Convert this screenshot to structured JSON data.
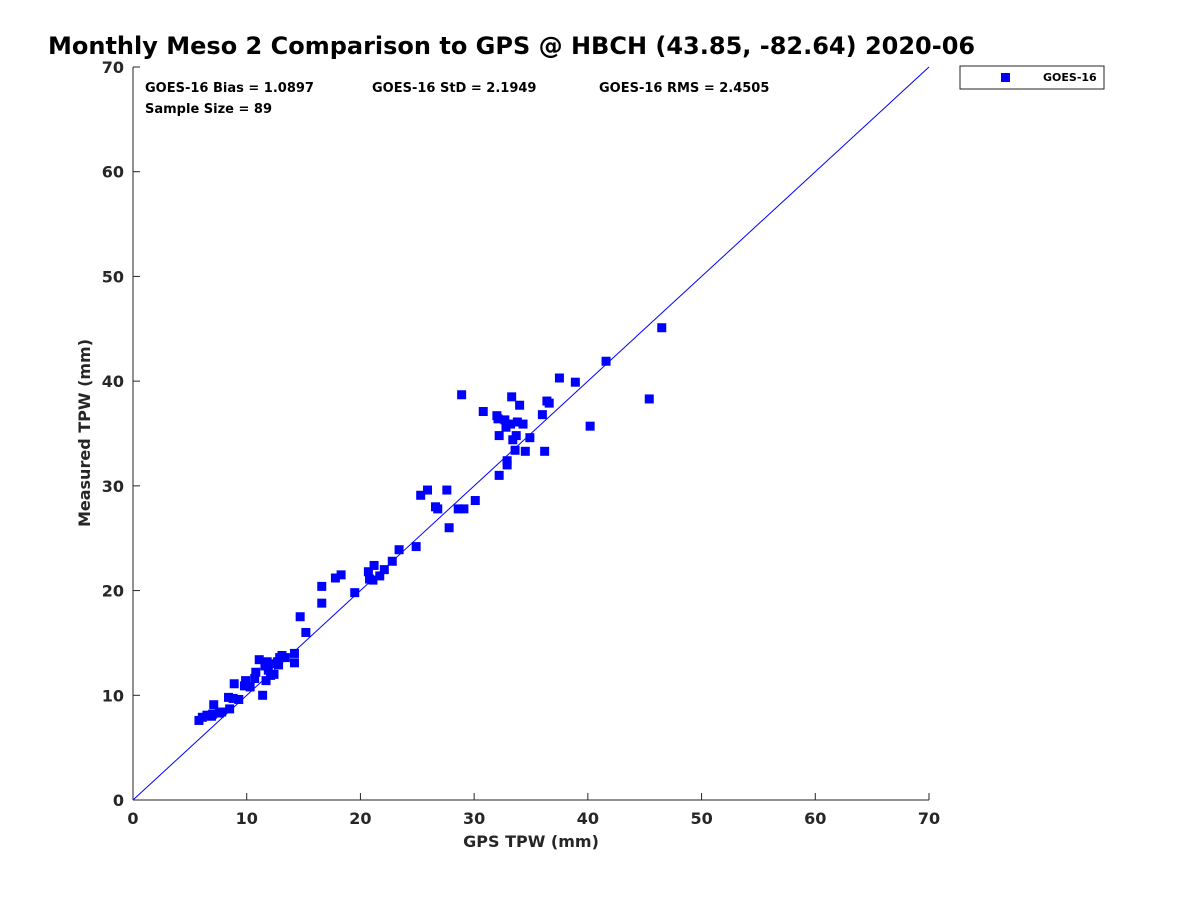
{
  "chart_data": {
    "type": "scatter",
    "title": "Monthly Meso 2 Comparison to GPS @ HBCH (43.85, -82.64) 2020-06",
    "xlabel": "GPS TPW (mm)",
    "ylabel": "Measured TPW (mm)",
    "xlim": [
      0,
      70
    ],
    "ylim": [
      0,
      70
    ],
    "xticks": [
      0,
      10,
      20,
      30,
      40,
      50,
      60,
      70
    ],
    "yticks": [
      0,
      10,
      20,
      30,
      40,
      50,
      60,
      70
    ],
    "grid": false,
    "legend_position": "outside-top-right",
    "reference_line": {
      "x": [
        0,
        70
      ],
      "y": [
        0,
        70
      ],
      "color": "#0000ff"
    },
    "annotations": {
      "bias": "GOES-16 Bias = 1.0897",
      "std": "GOES-16 StD = 2.1949",
      "rms": "GOES-16 RMS = 2.4505",
      "sample_size": "Sample Size = 89"
    },
    "series": [
      {
        "name": "GOES-16",
        "color": "#0000ff",
        "marker": "square",
        "points": [
          [
            5.8,
            7.6
          ],
          [
            6.1,
            7.9
          ],
          [
            6.5,
            8.1
          ],
          [
            6.9,
            8.0
          ],
          [
            7.0,
            8.2
          ],
          [
            7.1,
            9.1
          ],
          [
            7.6,
            8.3
          ],
          [
            8.4,
            9.8
          ],
          [
            8.5,
            8.7
          ],
          [
            8.8,
            9.7
          ],
          [
            8.9,
            11.1
          ],
          [
            9.8,
            10.9
          ],
          [
            9.9,
            11.4
          ],
          [
            10.7,
            11.6
          ],
          [
            10.8,
            12.2
          ],
          [
            11.1,
            13.4
          ],
          [
            11.4,
            10.0
          ],
          [
            11.6,
            12.8
          ],
          [
            11.7,
            11.4
          ],
          [
            11.8,
            13.2
          ],
          [
            11.9,
            12.4
          ],
          [
            12.1,
            11.9
          ],
          [
            12.2,
            13.0
          ],
          [
            12.4,
            12.0
          ],
          [
            12.7,
            13.2
          ],
          [
            12.8,
            12.9
          ],
          [
            12.9,
            13.6
          ],
          [
            13.1,
            13.8
          ],
          [
            13.4,
            13.6
          ],
          [
            14.2,
            14.0
          ],
          [
            14.2,
            13.1
          ],
          [
            14.7,
            17.5
          ],
          [
            16.6,
            18.8
          ],
          [
            16.6,
            20.4
          ],
          [
            17.8,
            21.2
          ],
          [
            18.3,
            21.5
          ],
          [
            20.7,
            21.8
          ],
          [
            20.8,
            21.1
          ],
          [
            21.1,
            21.0
          ],
          [
            21.2,
            22.4
          ],
          [
            21.7,
            21.4
          ],
          [
            22.1,
            22.0
          ],
          [
            22.8,
            22.8
          ],
          [
            23.4,
            23.9
          ],
          [
            25.3,
            29.1
          ],
          [
            25.9,
            29.6
          ],
          [
            26.6,
            28.0
          ],
          [
            26.8,
            27.8
          ],
          [
            27.6,
            29.6
          ],
          [
            27.8,
            26.0
          ],
          [
            28.6,
            27.8
          ],
          [
            28.9,
            38.7
          ],
          [
            29.1,
            27.8
          ],
          [
            30.1,
            28.6
          ],
          [
            30.8,
            37.1
          ],
          [
            32.0,
            36.7
          ],
          [
            32.1,
            36.4
          ],
          [
            32.2,
            34.8
          ],
          [
            32.2,
            31.0
          ],
          [
            32.7,
            36.3
          ],
          [
            32.8,
            35.6
          ],
          [
            32.9,
            32.4
          ],
          [
            32.9,
            32.0
          ],
          [
            33.2,
            35.9
          ],
          [
            33.3,
            38.5
          ],
          [
            33.4,
            34.4
          ],
          [
            33.6,
            33.4
          ],
          [
            33.7,
            34.8
          ],
          [
            33.8,
            36.1
          ],
          [
            34.0,
            37.7
          ],
          [
            34.3,
            35.9
          ],
          [
            34.5,
            33.3
          ],
          [
            34.9,
            34.6
          ],
          [
            36.0,
            36.8
          ],
          [
            36.2,
            33.3
          ],
          [
            36.4,
            38.1
          ],
          [
            36.6,
            37.9
          ],
          [
            37.5,
            40.3
          ],
          [
            38.9,
            39.9
          ],
          [
            40.2,
            35.7
          ],
          [
            41.6,
            41.9
          ],
          [
            45.4,
            38.3
          ],
          [
            46.5,
            45.1
          ],
          [
            24.9,
            24.2
          ],
          [
            19.5,
            19.8
          ],
          [
            15.2,
            16.0
          ],
          [
            10.3,
            10.8
          ],
          [
            9.3,
            9.6
          ],
          [
            7.8,
            8.4
          ]
        ]
      }
    ]
  }
}
